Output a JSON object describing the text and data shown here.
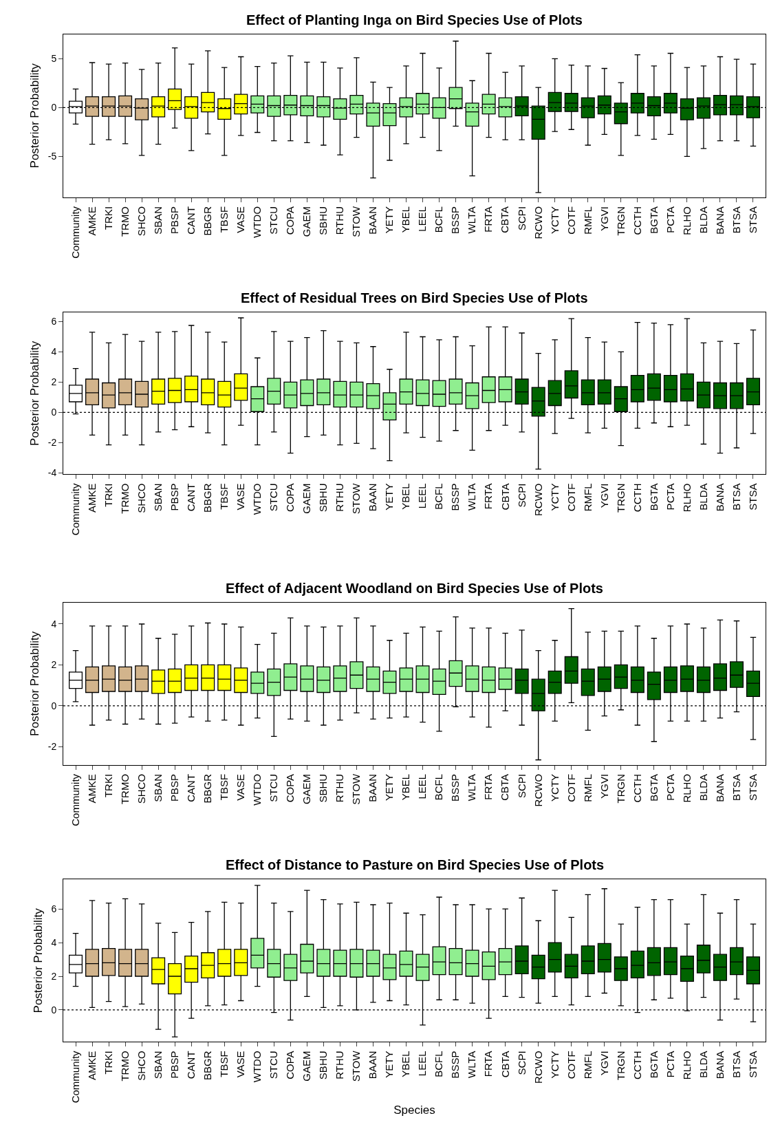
{
  "chart_data": [
    {
      "type": "box",
      "title": "Effect of Planting Inga on Bird Species Use of Plots",
      "ylabel": "Posterior Probability",
      "ylim": [
        -9.2,
        7.5
      ],
      "yticks": [
        -5,
        0,
        5
      ],
      "ref_lines": [
        {
          "axis": "y",
          "value": 0,
          "line_style": "dotted",
          "color": "#000000"
        }
      ],
      "categories": [
        "Community",
        "AMKE",
        "TRKI",
        "TRMO",
        "SHCO",
        "SBAN",
        "PBSP",
        "CANT",
        "BBGR",
        "TBSF",
        "VASE",
        "WTDO",
        "STCU",
        "COPA",
        "GAEM",
        "SBHU",
        "RTHU",
        "STOW",
        "BAAN",
        "YETY",
        "YBEL",
        "LEEL",
        "BCFL",
        "BSSP",
        "WLTA",
        "FRTA",
        "CBTA",
        "SCPI",
        "RCWO",
        "YCTY",
        "COTF",
        "RMFL",
        "YGVI",
        "TRGN",
        "CCTH",
        "BGTA",
        "PCTA",
        "RLHO",
        "BLDA",
        "BANA",
        "BTSA",
        "STSA"
      ],
      "colors": [
        "#ffffff",
        "#d2b48c",
        "#d2b48c",
        "#d2b48c",
        "#d2b48c",
        "#ffff00",
        "#ffff00",
        "#ffff00",
        "#ffff00",
        "#ffff00",
        "#ffff00",
        "#90ee90",
        "#90ee90",
        "#90ee90",
        "#90ee90",
        "#90ee90",
        "#90ee90",
        "#90ee90",
        "#90ee90",
        "#90ee90",
        "#90ee90",
        "#90ee90",
        "#90ee90",
        "#90ee90",
        "#90ee90",
        "#90ee90",
        "#90ee90",
        "#006400",
        "#006400",
        "#006400",
        "#006400",
        "#006400",
        "#006400",
        "#006400",
        "#006400",
        "#006400",
        "#006400",
        "#006400",
        "#006400",
        "#006400",
        "#006400",
        "#006400"
      ],
      "boxes": [
        {
          "low": -1.7,
          "q1": -0.55,
          "median": 0.1,
          "q3": 0.65,
          "high": 1.9
        },
        {
          "low": -3.75,
          "q1": -0.9,
          "median": 0.15,
          "q3": 1.1,
          "high": 4.6
        },
        {
          "low": -3.3,
          "q1": -0.9,
          "median": 0.15,
          "q3": 1.1,
          "high": 4.45
        },
        {
          "low": -3.7,
          "q1": -0.9,
          "median": 0.15,
          "q3": 1.2,
          "high": 4.55
        },
        {
          "low": -4.9,
          "q1": -1.25,
          "median": -0.05,
          "q3": 0.9,
          "high": 3.9
        },
        {
          "low": -3.75,
          "q1": -0.95,
          "median": 0.15,
          "q3": 1.1,
          "high": 4.55
        },
        {
          "low": -2.1,
          "q1": -0.2,
          "median": 0.7,
          "q3": 1.9,
          "high": 6.1
        },
        {
          "low": -4.4,
          "q1": -1.1,
          "median": 0.1,
          "q3": 1.1,
          "high": 4.45
        },
        {
          "low": -2.7,
          "q1": -0.45,
          "median": 0.5,
          "q3": 1.55,
          "high": 5.8
        },
        {
          "low": -4.9,
          "q1": -1.2,
          "median": -0.1,
          "q3": 0.9,
          "high": 4.1
        },
        {
          "low": -2.85,
          "q1": -0.65,
          "median": 0.4,
          "q3": 1.35,
          "high": 5.2
        },
        {
          "low": -2.55,
          "q1": -0.55,
          "median": 0.35,
          "q3": 1.2,
          "high": 4.2
        },
        {
          "low": -3.4,
          "q1": -0.9,
          "median": 0.2,
          "q3": 1.2,
          "high": 4.55
        },
        {
          "low": -3.4,
          "q1": -0.75,
          "median": 0.25,
          "q3": 1.25,
          "high": 5.3
        },
        {
          "low": -3.6,
          "q1": -0.85,
          "median": 0.2,
          "q3": 1.2,
          "high": 4.65
        },
        {
          "low": -3.85,
          "q1": -0.95,
          "median": 0.2,
          "q3": 1.1,
          "high": 4.65
        },
        {
          "low": -4.85,
          "q1": -1.2,
          "median": -0.05,
          "q3": 0.9,
          "high": 4.05
        },
        {
          "low": -3.05,
          "q1": -0.65,
          "median": 0.35,
          "q3": 1.25,
          "high": 5.1
        },
        {
          "low": -7.2,
          "q1": -1.9,
          "median": -0.55,
          "q3": 0.45,
          "high": 2.6
        },
        {
          "low": -5.4,
          "q1": -1.85,
          "median": -0.55,
          "q3": 0.4,
          "high": 2.05
        },
        {
          "low": -3.7,
          "q1": -0.95,
          "median": 0.1,
          "q3": 1.0,
          "high": 4.25
        },
        {
          "low": -3.05,
          "q1": -0.65,
          "median": 0.35,
          "q3": 1.45,
          "high": 5.55
        },
        {
          "low": -4.4,
          "q1": -1.1,
          "median": 0.0,
          "q3": 1.0,
          "high": 4.05
        },
        {
          "low": -1.9,
          "q1": -0.1,
          "median": 0.9,
          "q3": 2.05,
          "high": 6.8
        },
        {
          "low": -7.0,
          "q1": -1.9,
          "median": -0.45,
          "q3": 0.45,
          "high": 2.75
        },
        {
          "low": -3.05,
          "q1": -0.65,
          "median": 0.35,
          "q3": 1.35,
          "high": 5.55
        },
        {
          "low": -3.3,
          "q1": -0.95,
          "median": 0.1,
          "q3": 1.0,
          "high": 3.6
        },
        {
          "low": -3.3,
          "q1": -0.85,
          "median": 0.15,
          "q3": 1.1,
          "high": 4.25
        },
        {
          "low": -8.7,
          "q1": -3.25,
          "median": -1.2,
          "q3": 0.15,
          "high": 2.05
        },
        {
          "low": -2.45,
          "q1": -0.4,
          "median": 0.5,
          "q3": 1.55,
          "high": 5.0
        },
        {
          "low": -2.25,
          "q1": -0.4,
          "median": 0.45,
          "q3": 1.45,
          "high": 4.35
        },
        {
          "low": -3.85,
          "q1": -1.05,
          "median": 0.15,
          "q3": 1.0,
          "high": 4.25
        },
        {
          "low": -2.75,
          "q1": -0.65,
          "median": 0.25,
          "q3": 1.2,
          "high": 4.0
        },
        {
          "low": -4.9,
          "q1": -1.65,
          "median": -0.45,
          "q3": 0.45,
          "high": 2.55
        },
        {
          "low": -2.85,
          "q1": -0.55,
          "median": 0.45,
          "q3": 1.45,
          "high": 5.4
        },
        {
          "low": -3.25,
          "q1": -0.85,
          "median": 0.2,
          "q3": 1.1,
          "high": 4.25
        },
        {
          "low": -2.75,
          "q1": -0.55,
          "median": 0.45,
          "q3": 1.45,
          "high": 5.55
        },
        {
          "low": -5.0,
          "q1": -1.25,
          "median": -0.05,
          "q3": 0.9,
          "high": 4.1
        },
        {
          "low": -4.2,
          "q1": -1.1,
          "median": 0.15,
          "q3": 1.0,
          "high": 4.25
        },
        {
          "low": -3.4,
          "q1": -0.75,
          "median": 0.3,
          "q3": 1.25,
          "high": 5.2
        },
        {
          "low": -3.4,
          "q1": -0.75,
          "median": 0.3,
          "q3": 1.2,
          "high": 4.95
        },
        {
          "low": -3.95,
          "q1": -1.05,
          "median": 0.1,
          "q3": 1.1,
          "high": 4.45
        }
      ]
    },
    {
      "type": "box",
      "title": "Effect of Residual Trees on Bird Species Use of Plots",
      "ylabel": "Posterior Probability",
      "ylim": [
        -4.1,
        6.6
      ],
      "yticks": [
        -4,
        -2,
        0,
        2,
        4,
        6
      ],
      "ref_lines": [
        {
          "axis": "y",
          "value": 0,
          "line_style": "dotted",
          "color": "#000000"
        }
      ],
      "categories": [
        "Community",
        "AMKE",
        "TRKI",
        "TRMO",
        "SHCO",
        "SBAN",
        "PBSP",
        "CANT",
        "BBGR",
        "TBSF",
        "VASE",
        "WTDO",
        "STCU",
        "COPA",
        "GAEM",
        "SBHU",
        "RTHU",
        "STOW",
        "BAAN",
        "YETY",
        "YBEL",
        "LEEL",
        "BCFL",
        "BSSP",
        "WLTA",
        "FRTA",
        "CBTA",
        "SCPI",
        "RCWO",
        "YCTY",
        "COTF",
        "RMFL",
        "YGVI",
        "TRGN",
        "CCTH",
        "BGTA",
        "PCTA",
        "RLHO",
        "BLDA",
        "BANA",
        "BTSA",
        "STSA"
      ],
      "colors": [
        "#ffffff",
        "#d2b48c",
        "#d2b48c",
        "#d2b48c",
        "#d2b48c",
        "#ffff00",
        "#ffff00",
        "#ffff00",
        "#ffff00",
        "#ffff00",
        "#ffff00",
        "#90ee90",
        "#90ee90",
        "#90ee90",
        "#90ee90",
        "#90ee90",
        "#90ee90",
        "#90ee90",
        "#90ee90",
        "#90ee90",
        "#90ee90",
        "#90ee90",
        "#90ee90",
        "#90ee90",
        "#90ee90",
        "#90ee90",
        "#90ee90",
        "#006400",
        "#006400",
        "#006400",
        "#006400",
        "#006400",
        "#006400",
        "#006400",
        "#006400",
        "#006400",
        "#006400",
        "#006400",
        "#006400",
        "#006400",
        "#006400",
        "#006400"
      ],
      "boxes": [
        {
          "low": -0.1,
          "q1": 0.7,
          "median": 1.25,
          "q3": 1.8,
          "high": 2.9
        },
        {
          "low": -1.5,
          "q1": 0.5,
          "median": 1.3,
          "q3": 2.2,
          "high": 5.3
        },
        {
          "low": -2.15,
          "q1": 0.3,
          "median": 1.15,
          "q3": 1.95,
          "high": 4.6
        },
        {
          "low": -1.5,
          "q1": 0.5,
          "median": 1.3,
          "q3": 2.2,
          "high": 5.15
        },
        {
          "low": -2.15,
          "q1": 0.35,
          "median": 1.2,
          "q3": 2.05,
          "high": 4.7
        },
        {
          "low": -1.3,
          "q1": 0.55,
          "median": 1.4,
          "q3": 2.2,
          "high": 5.3
        },
        {
          "low": -1.15,
          "q1": 0.65,
          "median": 1.45,
          "q3": 2.25,
          "high": 5.35
        },
        {
          "low": -0.95,
          "q1": 0.7,
          "median": 1.5,
          "q3": 2.4,
          "high": 5.75
        },
        {
          "low": -1.35,
          "q1": 0.5,
          "median": 1.3,
          "q3": 2.2,
          "high": 5.3
        },
        {
          "low": -2.15,
          "q1": 0.35,
          "median": 1.15,
          "q3": 2.05,
          "high": 4.65
        },
        {
          "low": -0.85,
          "q1": 0.8,
          "median": 1.6,
          "q3": 2.55,
          "high": 6.25
        },
        {
          "low": -2.15,
          "q1": 0.05,
          "median": 0.9,
          "q3": 1.7,
          "high": 3.6
        },
        {
          "low": -1.3,
          "q1": 0.55,
          "median": 1.4,
          "q3": 2.25,
          "high": 5.35
        },
        {
          "low": -2.7,
          "q1": 0.3,
          "median": 1.15,
          "q3": 2.0,
          "high": 4.7
        },
        {
          "low": -1.6,
          "q1": 0.45,
          "median": 1.25,
          "q3": 2.15,
          "high": 4.95
        },
        {
          "low": -1.5,
          "q1": 0.5,
          "median": 1.3,
          "q3": 2.2,
          "high": 5.4
        },
        {
          "low": -2.15,
          "q1": 0.35,
          "median": 1.15,
          "q3": 2.05,
          "high": 4.7
        },
        {
          "low": -2.05,
          "q1": 0.35,
          "median": 1.15,
          "q3": 2.0,
          "high": 4.6
        },
        {
          "low": -2.4,
          "q1": 0.25,
          "median": 1.1,
          "q3": 1.9,
          "high": 4.35
        },
        {
          "low": -3.2,
          "q1": -0.5,
          "median": 0.55,
          "q3": 1.3,
          "high": 2.85
        },
        {
          "low": -1.35,
          "q1": 0.55,
          "median": 1.35,
          "q3": 2.2,
          "high": 5.3
        },
        {
          "low": -1.65,
          "q1": 0.45,
          "median": 1.25,
          "q3": 2.15,
          "high": 5.0
        },
        {
          "low": -1.9,
          "q1": 0.4,
          "median": 1.2,
          "q3": 2.1,
          "high": 4.8
        },
        {
          "low": -1.2,
          "q1": 0.55,
          "median": 1.3,
          "q3": 2.2,
          "high": 5.0
        },
        {
          "low": -2.5,
          "q1": 0.25,
          "median": 1.1,
          "q3": 1.95,
          "high": 4.4
        },
        {
          "low": -1.2,
          "q1": 0.65,
          "median": 1.45,
          "q3": 2.35,
          "high": 5.65
        },
        {
          "low": -0.85,
          "q1": 0.7,
          "median": 1.5,
          "q3": 2.35,
          "high": 5.65
        },
        {
          "low": -1.3,
          "q1": 0.55,
          "median": 1.35,
          "q3": 2.2,
          "high": 5.25
        },
        {
          "low": -3.75,
          "q1": -0.25,
          "median": 0.75,
          "q3": 1.65,
          "high": 3.9
        },
        {
          "low": -1.4,
          "q1": 0.45,
          "median": 1.25,
          "q3": 2.1,
          "high": 4.8
        },
        {
          "low": -0.4,
          "q1": 0.95,
          "median": 1.75,
          "q3": 2.75,
          "high": 6.2
        },
        {
          "low": -1.35,
          "q1": 0.5,
          "median": 1.3,
          "q3": 2.15,
          "high": 4.95
        },
        {
          "low": -1.05,
          "q1": 0.55,
          "median": 1.3,
          "q3": 2.15,
          "high": 4.65
        },
        {
          "low": -2.2,
          "q1": 0.05,
          "median": 0.9,
          "q3": 1.7,
          "high": 4.0
        },
        {
          "low": -1.05,
          "q1": 0.7,
          "median": 1.5,
          "q3": 2.45,
          "high": 5.95
        },
        {
          "low": -0.7,
          "q1": 0.8,
          "median": 1.6,
          "q3": 2.55,
          "high": 5.9
        },
        {
          "low": -0.95,
          "q1": 0.7,
          "median": 1.5,
          "q3": 2.45,
          "high": 5.8
        },
        {
          "low": -0.85,
          "q1": 0.75,
          "median": 1.55,
          "q3": 2.55,
          "high": 6.2
        },
        {
          "low": -2.1,
          "q1": 0.3,
          "median": 1.15,
          "q3": 2.0,
          "high": 4.6
        },
        {
          "low": -2.7,
          "q1": 0.25,
          "median": 1.1,
          "q3": 1.95,
          "high": 4.7
        },
        {
          "low": -2.35,
          "q1": 0.25,
          "median": 1.1,
          "q3": 1.95,
          "high": 4.55
        },
        {
          "low": -1.4,
          "q1": 0.5,
          "median": 1.35,
          "q3": 2.25,
          "high": 5.45
        }
      ]
    },
    {
      "type": "box",
      "title": "Effect of Adjacent Woodland on Bird Species Use of Plots",
      "ylabel": "Posterior Probability",
      "ylim": [
        -2.9,
        5.05
      ],
      "yticks": [
        -2,
        0,
        2,
        4
      ],
      "ref_lines": [
        {
          "axis": "y",
          "value": 0,
          "line_style": "dotted",
          "color": "#000000"
        }
      ],
      "categories": [
        "Community",
        "AMKE",
        "TRKI",
        "TRMO",
        "SHCO",
        "SBAN",
        "PBSP",
        "CANT",
        "BBGR",
        "TBSF",
        "VASE",
        "WTDO",
        "STCU",
        "COPA",
        "GAEM",
        "SBHU",
        "RTHU",
        "STOW",
        "BAAN",
        "YETY",
        "YBEL",
        "LEEL",
        "BCFL",
        "BSSP",
        "WLTA",
        "FRTA",
        "CBTA",
        "SCPI",
        "RCWO",
        "YCTY",
        "COTF",
        "RMFL",
        "YGVI",
        "TRGN",
        "CCTH",
        "BGTA",
        "PCTA",
        "RLHO",
        "BLDA",
        "BANA",
        "BTSA",
        "STSA"
      ],
      "colors": [
        "#ffffff",
        "#d2b48c",
        "#d2b48c",
        "#d2b48c",
        "#d2b48c",
        "#ffff00",
        "#ffff00",
        "#ffff00",
        "#ffff00",
        "#ffff00",
        "#ffff00",
        "#90ee90",
        "#90ee90",
        "#90ee90",
        "#90ee90",
        "#90ee90",
        "#90ee90",
        "#90ee90",
        "#90ee90",
        "#90ee90",
        "#90ee90",
        "#90ee90",
        "#90ee90",
        "#90ee90",
        "#90ee90",
        "#90ee90",
        "#90ee90",
        "#006400",
        "#006400",
        "#006400",
        "#006400",
        "#006400",
        "#006400",
        "#006400",
        "#006400",
        "#006400",
        "#006400",
        "#006400",
        "#006400",
        "#006400",
        "#006400",
        "#006400"
      ],
      "boxes": [
        {
          "low": 0.2,
          "q1": 0.85,
          "median": 1.25,
          "q3": 1.65,
          "high": 2.7
        },
        {
          "low": -0.95,
          "q1": 0.65,
          "median": 1.25,
          "q3": 1.9,
          "high": 3.9
        },
        {
          "low": -0.7,
          "q1": 0.7,
          "median": 1.3,
          "q3": 1.95,
          "high": 3.9
        },
        {
          "low": -0.9,
          "q1": 0.7,
          "median": 1.25,
          "q3": 1.9,
          "high": 3.9
        },
        {
          "low": -0.65,
          "q1": 0.7,
          "median": 1.3,
          "q3": 1.95,
          "high": 4.0
        },
        {
          "low": -0.9,
          "q1": 0.6,
          "median": 1.2,
          "q3": 1.75,
          "high": 3.3
        },
        {
          "low": -0.85,
          "q1": 0.65,
          "median": 1.2,
          "q3": 1.8,
          "high": 3.5
        },
        {
          "low": -0.55,
          "q1": 0.75,
          "median": 1.35,
          "q3": 2.0,
          "high": 3.9
        },
        {
          "low": -0.75,
          "q1": 0.75,
          "median": 1.35,
          "q3": 2.0,
          "high": 4.05
        },
        {
          "low": -0.7,
          "q1": 0.75,
          "median": 1.3,
          "q3": 2.0,
          "high": 4.0
        },
        {
          "low": -0.95,
          "q1": 0.65,
          "median": 1.25,
          "q3": 1.85,
          "high": 3.85
        },
        {
          "low": -0.6,
          "q1": 0.6,
          "median": 1.1,
          "q3": 1.65,
          "high": 3.0
        },
        {
          "low": -1.5,
          "q1": 0.5,
          "median": 1.15,
          "q3": 1.8,
          "high": 3.55
        },
        {
          "low": -0.65,
          "q1": 0.75,
          "median": 1.4,
          "q3": 2.05,
          "high": 4.3
        },
        {
          "low": -0.75,
          "q1": 0.7,
          "median": 1.3,
          "q3": 1.95,
          "high": 3.9
        },
        {
          "low": -0.95,
          "q1": 0.65,
          "median": 1.25,
          "q3": 1.9,
          "high": 3.85
        },
        {
          "low": -0.7,
          "q1": 0.7,
          "median": 1.35,
          "q3": 1.95,
          "high": 3.9
        },
        {
          "low": -0.35,
          "q1": 0.85,
          "median": 1.5,
          "q3": 2.15,
          "high": 4.3
        },
        {
          "low": -0.65,
          "q1": 0.7,
          "median": 1.3,
          "q3": 1.9,
          "high": 3.9
        },
        {
          "low": -0.6,
          "q1": 0.6,
          "median": 1.15,
          "q3": 1.7,
          "high": 3.2
        },
        {
          "low": -0.55,
          "q1": 0.7,
          "median": 1.3,
          "q3": 1.85,
          "high": 3.55
        },
        {
          "low": -0.8,
          "q1": 0.65,
          "median": 1.3,
          "q3": 1.95,
          "high": 3.85
        },
        {
          "low": -1.25,
          "q1": 0.55,
          "median": 1.2,
          "q3": 1.8,
          "high": 3.65
        },
        {
          "low": -0.05,
          "q1": 0.95,
          "median": 1.6,
          "q3": 2.2,
          "high": 4.35
        },
        {
          "low": -0.55,
          "q1": 0.7,
          "median": 1.3,
          "q3": 1.95,
          "high": 3.8
        },
        {
          "low": -1.05,
          "q1": 0.65,
          "median": 1.25,
          "q3": 1.9,
          "high": 3.8
        },
        {
          "low": -0.25,
          "q1": 0.8,
          "median": 1.3,
          "q3": 1.85,
          "high": 3.55
        },
        {
          "low": -0.95,
          "q1": 0.6,
          "median": 1.25,
          "q3": 1.8,
          "high": 3.7
        },
        {
          "low": -2.65,
          "q1": -0.25,
          "median": 0.6,
          "q3": 1.3,
          "high": 2.7
        },
        {
          "low": -0.75,
          "q1": 0.6,
          "median": 1.15,
          "q3": 1.7,
          "high": 3.2
        },
        {
          "low": 0.15,
          "q1": 1.1,
          "median": 1.7,
          "q3": 2.4,
          "high": 4.75
        },
        {
          "low": -1.2,
          "q1": 0.5,
          "median": 1.2,
          "q3": 1.8,
          "high": 3.6
        },
        {
          "low": -0.5,
          "q1": 0.7,
          "median": 1.3,
          "q3": 1.9,
          "high": 3.65
        },
        {
          "low": -0.2,
          "q1": 0.85,
          "median": 1.4,
          "q3": 2.0,
          "high": 3.65
        },
        {
          "low": -0.95,
          "q1": 0.65,
          "median": 1.25,
          "q3": 1.9,
          "high": 3.9
        },
        {
          "low": -1.75,
          "q1": 0.3,
          "median": 1.05,
          "q3": 1.65,
          "high": 3.3
        },
        {
          "low": -0.75,
          "q1": 0.65,
          "median": 1.25,
          "q3": 1.9,
          "high": 3.9
        },
        {
          "low": -0.75,
          "q1": 0.7,
          "median": 1.3,
          "q3": 1.95,
          "high": 4.0
        },
        {
          "low": -0.75,
          "q1": 0.65,
          "median": 1.25,
          "q3": 1.9,
          "high": 3.8
        },
        {
          "low": -0.6,
          "q1": 0.75,
          "median": 1.35,
          "q3": 2.05,
          "high": 4.2
        },
        {
          "low": -0.3,
          "q1": 0.9,
          "median": 1.5,
          "q3": 2.15,
          "high": 4.15
        },
        {
          "low": -1.65,
          "q1": 0.45,
          "median": 1.1,
          "q3": 1.7,
          "high": 3.35
        }
      ]
    },
    {
      "type": "box",
      "title": "Effect of Distance to Pasture on Bird Species Use of Plots",
      "ylabel": "Posterior Probability",
      "xlabel": "Species",
      "ylim": [
        -1.9,
        7.75
      ],
      "yticks": [
        0,
        2,
        4,
        6
      ],
      "ref_lines": [
        {
          "axis": "y",
          "value": 0,
          "line_style": "dotted",
          "color": "#000000"
        }
      ],
      "categories": [
        "Community",
        "AMKE",
        "TRKI",
        "TRMO",
        "SHCO",
        "SBAN",
        "PBSP",
        "CANT",
        "BBGR",
        "TBSF",
        "VASE",
        "WTDO",
        "STCU",
        "COPA",
        "GAEM",
        "SBHU",
        "RTHU",
        "STOW",
        "BAAN",
        "YETY",
        "YBEL",
        "LEEL",
        "BCFL",
        "BSSP",
        "WLTA",
        "FRTA",
        "CBTA",
        "SCPI",
        "RCWO",
        "YCTY",
        "COTF",
        "RMFL",
        "YGVI",
        "TRGN",
        "CCTH",
        "BGTA",
        "PCTA",
        "RLHO",
        "BLDA",
        "BANA",
        "BTSA",
        "STSA"
      ],
      "colors": [
        "#ffffff",
        "#d2b48c",
        "#d2b48c",
        "#d2b48c",
        "#d2b48c",
        "#ffff00",
        "#ffff00",
        "#ffff00",
        "#ffff00",
        "#ffff00",
        "#ffff00",
        "#90ee90",
        "#90ee90",
        "#90ee90",
        "#90ee90",
        "#90ee90",
        "#90ee90",
        "#90ee90",
        "#90ee90",
        "#90ee90",
        "#90ee90",
        "#90ee90",
        "#90ee90",
        "#90ee90",
        "#90ee90",
        "#90ee90",
        "#90ee90",
        "#006400",
        "#006400",
        "#006400",
        "#006400",
        "#006400",
        "#006400",
        "#006400",
        "#006400",
        "#006400",
        "#006400",
        "#006400",
        "#006400",
        "#006400",
        "#006400",
        "#006400"
      ],
      "boxes": [
        {
          "low": 1.4,
          "q1": 2.2,
          "median": 2.7,
          "q3": 3.25,
          "high": 4.55
        },
        {
          "low": 0.15,
          "q1": 2.0,
          "median": 2.75,
          "q3": 3.6,
          "high": 6.5
        },
        {
          "low": 0.5,
          "q1": 2.05,
          "median": 2.8,
          "q3": 3.65,
          "high": 6.35
        },
        {
          "low": 0.2,
          "q1": 2.0,
          "median": 2.75,
          "q3": 3.6,
          "high": 6.6
        },
        {
          "low": 0.35,
          "q1": 2.0,
          "median": 2.75,
          "q3": 3.6,
          "high": 6.3
        },
        {
          "low": -1.15,
          "q1": 1.55,
          "median": 2.4,
          "q3": 3.1,
          "high": 5.15
        },
        {
          "low": -1.6,
          "q1": 0.95,
          "median": 2.0,
          "q3": 2.75,
          "high": 4.6
        },
        {
          "low": -0.5,
          "q1": 1.65,
          "median": 2.45,
          "q3": 3.2,
          "high": 5.2
        },
        {
          "low": 0.25,
          "q1": 1.9,
          "median": 2.65,
          "q3": 3.4,
          "high": 5.85
        },
        {
          "low": 0.3,
          "q1": 2.0,
          "median": 2.75,
          "q3": 3.6,
          "high": 6.4
        },
        {
          "low": 0.55,
          "q1": 2.05,
          "median": 2.8,
          "q3": 3.6,
          "high": 6.35
        },
        {
          "low": 1.4,
          "q1": 2.5,
          "median": 3.25,
          "q3": 4.25,
          "high": 7.4
        },
        {
          "low": -0.15,
          "q1": 1.95,
          "median": 2.75,
          "q3": 3.6,
          "high": 6.35
        },
        {
          "low": -0.6,
          "q1": 1.75,
          "median": 2.5,
          "q3": 3.3,
          "high": 5.85
        },
        {
          "low": 0.8,
          "q1": 2.2,
          "median": 2.9,
          "q3": 3.9,
          "high": 7.1
        },
        {
          "low": 0.15,
          "q1": 2.0,
          "median": 2.75,
          "q3": 3.6,
          "high": 6.55
        },
        {
          "low": 0.25,
          "q1": 2.0,
          "median": 2.75,
          "q3": 3.55,
          "high": 6.3
        },
        {
          "low": 0.0,
          "q1": 1.95,
          "median": 2.75,
          "q3": 3.6,
          "high": 6.4
        },
        {
          "low": 0.45,
          "q1": 2.0,
          "median": 2.75,
          "q3": 3.55,
          "high": 6.25
        },
        {
          "low": 0.55,
          "q1": 1.8,
          "median": 2.5,
          "q3": 3.3,
          "high": 6.35
        },
        {
          "low": 0.3,
          "q1": 2.0,
          "median": 2.7,
          "q3": 3.5,
          "high": 5.75
        },
        {
          "low": -0.9,
          "q1": 1.75,
          "median": 2.55,
          "q3": 3.3,
          "high": 5.65
        },
        {
          "low": 0.6,
          "q1": 2.1,
          "median": 2.85,
          "q3": 3.75,
          "high": 6.7
        },
        {
          "low": 0.6,
          "q1": 2.1,
          "median": 2.8,
          "q3": 3.65,
          "high": 6.25
        },
        {
          "low": 0.4,
          "q1": 2.0,
          "median": 2.75,
          "q3": 3.55,
          "high": 6.25
        },
        {
          "low": -0.5,
          "q1": 1.8,
          "median": 2.6,
          "q3": 3.45,
          "high": 6.0
        },
        {
          "low": 0.8,
          "q1": 2.1,
          "median": 2.85,
          "q3": 3.65,
          "high": 6.0
        },
        {
          "low": 0.75,
          "q1": 2.15,
          "median": 2.9,
          "q3": 3.8,
          "high": 6.65
        },
        {
          "low": 0.4,
          "q1": 1.85,
          "median": 2.55,
          "q3": 3.25,
          "high": 5.3
        },
        {
          "low": 0.8,
          "q1": 2.25,
          "median": 3.0,
          "q3": 4.0,
          "high": 7.1
        },
        {
          "low": 0.3,
          "q1": 1.9,
          "median": 2.6,
          "q3": 3.3,
          "high": 5.5
        },
        {
          "low": 0.8,
          "q1": 2.15,
          "median": 2.9,
          "q3": 3.8,
          "high": 6.85
        },
        {
          "low": 1.0,
          "q1": 2.25,
          "median": 3.0,
          "q3": 3.95,
          "high": 7.2
        },
        {
          "low": 0.25,
          "q1": 1.75,
          "median": 2.45,
          "q3": 3.15,
          "high": 5.1
        },
        {
          "low": -0.15,
          "q1": 1.9,
          "median": 2.65,
          "q3": 3.5,
          "high": 6.1
        },
        {
          "low": 0.6,
          "q1": 2.05,
          "median": 2.8,
          "q3": 3.7,
          "high": 6.55
        },
        {
          "low": 0.7,
          "q1": 2.1,
          "median": 2.85,
          "q3": 3.7,
          "high": 6.55
        },
        {
          "low": -0.05,
          "q1": 1.7,
          "median": 2.45,
          "q3": 3.2,
          "high": 5.1
        },
        {
          "low": 0.75,
          "q1": 2.2,
          "median": 2.95,
          "q3": 3.85,
          "high": 6.85
        },
        {
          "low": -0.6,
          "q1": 1.75,
          "median": 2.55,
          "q3": 3.3,
          "high": 5.75
        },
        {
          "low": 0.65,
          "q1": 2.1,
          "median": 2.85,
          "q3": 3.7,
          "high": 6.55
        },
        {
          "low": -0.7,
          "q1": 1.55,
          "median": 2.35,
          "q3": 3.15,
          "high": 5.1
        }
      ]
    }
  ]
}
